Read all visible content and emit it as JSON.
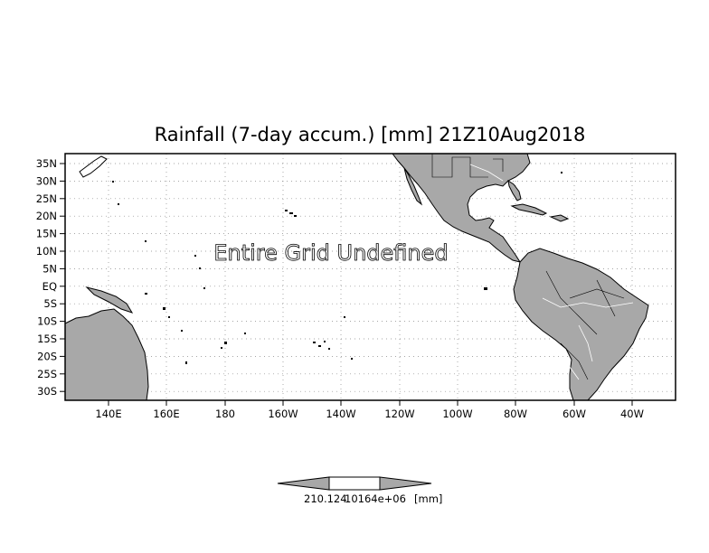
{
  "map": {
    "title": "Rainfall (7-day accum.) [mm] 21Z10Aug2018",
    "notice": "Entire Grid Undefined",
    "lat_labels": [
      "35N",
      "30N",
      "25N",
      "20N",
      "15N",
      "10N",
      "5N",
      "EQ",
      "5S",
      "10S",
      "15S",
      "20S",
      "25S",
      "30S"
    ],
    "lon_labels": [
      "140E",
      "160E",
      "180",
      "160W",
      "140W",
      "120W",
      "100W",
      "80W",
      "60W",
      "40W"
    ],
    "land_color": "#a8a8a8",
    "grid": "dotted"
  },
  "colorbar": {
    "label_left": "210.124",
    "label_mid": "10164e+06",
    "label_unit": "[mm]"
  }
}
